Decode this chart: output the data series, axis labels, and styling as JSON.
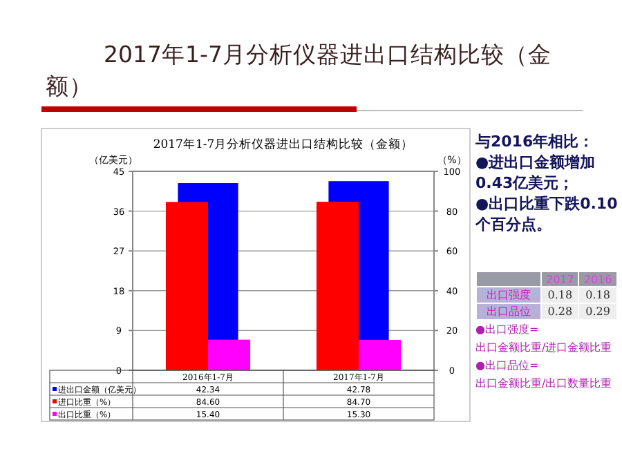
{
  "chart_data": {
    "type": "bar",
    "title": "2017年1-7月分析仪器进出口结构比较（金额）",
    "subtitle": "2017年1-7月分析仪器进出口结构比较（金额）",
    "ylabel": "（亿美元）",
    "y2label": "（%）",
    "categories": [
      "2016年1-7月",
      "2017年1-7月"
    ],
    "series": [
      {
        "name": "进出口金额（亿美元）",
        "color": "#0000ff",
        "values": [
          42.34,
          42.78
        ],
        "value_labels": [
          "42.34",
          "42.78"
        ]
      },
      {
        "name": "进口比重（%）",
        "color": "#ff0000",
        "axis": "y2",
        "values": [
          84.6,
          84.7
        ],
        "value_labels": [
          "84.60",
          "84.70"
        ]
      },
      {
        "name": "出口比重（%）",
        "color": "#ff00ff",
        "axis": "y2",
        "values": [
          15.4,
          15.3
        ],
        "value_labels": [
          "15.40",
          "15.30"
        ]
      }
    ],
    "ylim": [
      0,
      45
    ],
    "yticks": [
      0,
      9,
      18,
      27,
      36,
      45
    ],
    "y2lim": [
      0,
      100
    ],
    "y2ticks": [
      0,
      20,
      40,
      60,
      80,
      100
    ],
    "grid": "y",
    "legend": "bottom",
    "annotations": [
      "与2016年相比：",
      "●进出口金额增加0.43亿美元；",
      "●出口比重下跌0.10个百分点。",
      "2017",
      "2016",
      "出口强度",
      "0.18",
      "0.18",
      "出口品位",
      "0.28",
      "0.29",
      "●出口强度=",
      "出口金额比重/进口金额比重",
      "●出口品位=",
      "出口金额比重/出口数量比重"
    ]
  }
}
